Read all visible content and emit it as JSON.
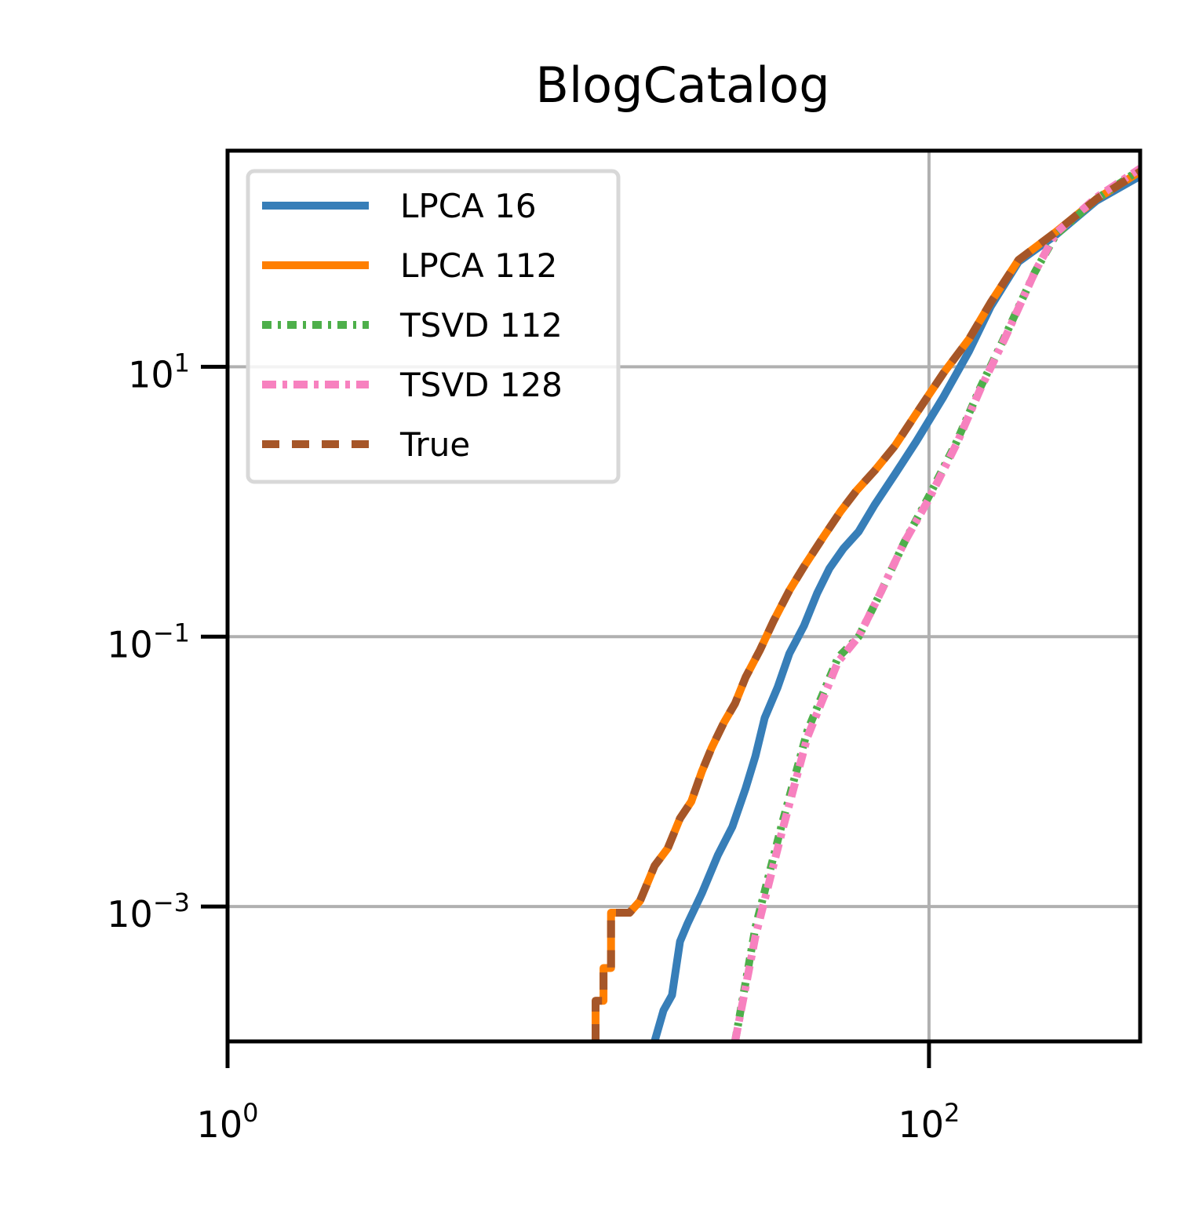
{
  "chart_data": {
    "type": "line",
    "title": "BlogCatalog",
    "xlabel": "",
    "ylabel": "",
    "xscale": "log",
    "yscale": "log",
    "xlim": [
      1,
      400
    ],
    "ylim": [
      0.0001,
      400
    ],
    "grid": true,
    "legend_position": "top-left",
    "x_ticks": [
      {
        "value": 1,
        "base": "10",
        "exp": "0"
      },
      {
        "value": 100,
        "base": "10",
        "exp": "2"
      }
    ],
    "y_ticks": [
      {
        "value": 0.001,
        "base": "10",
        "exp": "−3"
      },
      {
        "value": 0.1,
        "base": "10",
        "exp": "−1"
      },
      {
        "value": 10,
        "base": "10",
        "exp": "1"
      }
    ],
    "series": [
      {
        "name": "LPCA 16",
        "color": "#377eb8",
        "dash": "solid",
        "points": [
          [
            16.5,
            0.0001
          ],
          [
            17.5,
            0.00017
          ],
          [
            18.5,
            0.00022
          ],
          [
            19.5,
            0.00055
          ],
          [
            20.5,
            0.00075
          ],
          [
            22.5,
            0.00125
          ],
          [
            25,
            0.0024
          ],
          [
            27.5,
            0.0039
          ],
          [
            30,
            0.0075
          ],
          [
            32,
            0.013
          ],
          [
            34,
            0.025
          ],
          [
            37,
            0.042
          ],
          [
            40,
            0.075
          ],
          [
            44,
            0.12
          ],
          [
            48,
            0.21
          ],
          [
            52,
            0.32
          ],
          [
            57,
            0.45
          ],
          [
            63,
            0.6
          ],
          [
            70,
            0.95
          ],
          [
            80,
            1.6
          ],
          [
            92,
            2.8
          ],
          [
            110,
            6
          ],
          [
            130,
            13
          ],
          [
            150,
            28
          ],
          [
            180,
            60
          ],
          [
            230,
            95
          ],
          [
            300,
            170
          ],
          [
            400,
            260
          ]
        ]
      },
      {
        "name": "LPCA 112",
        "color": "#ff7f00",
        "dash": "solid",
        "points": [
          [
            11.2,
            0.0001
          ],
          [
            11.2,
            0.0002
          ],
          [
            11.8,
            0.0002
          ],
          [
            11.8,
            0.00035
          ],
          [
            12.4,
            0.00035
          ],
          [
            12.4,
            0.0009
          ],
          [
            14,
            0.0009
          ],
          [
            15,
            0.0011
          ],
          [
            16.5,
            0.002
          ],
          [
            18,
            0.0027
          ],
          [
            19.5,
            0.0045
          ],
          [
            21,
            0.006
          ],
          [
            22.5,
            0.01
          ],
          [
            24,
            0.015
          ],
          [
            26,
            0.023
          ],
          [
            28,
            0.032
          ],
          [
            30,
            0.05
          ],
          [
            33,
            0.08
          ],
          [
            36,
            0.13
          ],
          [
            40,
            0.22
          ],
          [
            44,
            0.33
          ],
          [
            50,
            0.55
          ],
          [
            56,
            0.85
          ],
          [
            62,
            1.2
          ],
          [
            70,
            1.7
          ],
          [
            80,
            2.6
          ],
          [
            92,
            4.5
          ],
          [
            110,
            9
          ],
          [
            130,
            16
          ],
          [
            150,
            30
          ],
          [
            180,
            62
          ],
          [
            230,
            100
          ],
          [
            300,
            175
          ],
          [
            400,
            280
          ]
        ]
      },
      {
        "name": "TSVD 112",
        "color": "#4daf4a",
        "dash": "12 8 4 8",
        "points": [
          [
            28,
            0.0001
          ],
          [
            32,
            0.0007
          ],
          [
            38,
            0.004
          ],
          [
            45,
            0.02
          ],
          [
            55,
            0.07
          ],
          [
            63,
            0.1
          ],
          [
            72,
            0.2
          ],
          [
            85,
            0.5
          ],
          [
            100,
            1.1
          ],
          [
            120,
            2.8
          ],
          [
            140,
            7
          ],
          [
            165,
            17
          ],
          [
            200,
            50
          ],
          [
            230,
            95
          ],
          [
            300,
            175
          ],
          [
            400,
            290
          ]
        ]
      },
      {
        "name": "TSVD 128",
        "color": "#f781bf",
        "dash": "18 8 6 8",
        "points": [
          [
            28,
            0.0001
          ],
          [
            32,
            0.0006
          ],
          [
            38,
            0.0035
          ],
          [
            45,
            0.018
          ],
          [
            55,
            0.065
          ],
          [
            63,
            0.1
          ],
          [
            72,
            0.2
          ],
          [
            85,
            0.5
          ],
          [
            100,
            1.05
          ],
          [
            120,
            2.7
          ],
          [
            140,
            6.8
          ],
          [
            165,
            16.5
          ],
          [
            200,
            50
          ],
          [
            230,
            98
          ],
          [
            300,
            180
          ],
          [
            400,
            295
          ]
        ]
      },
      {
        "name": "True",
        "color": "#a65628",
        "dash": "22 16",
        "points": [
          [
            11.2,
            0.0001
          ],
          [
            11.2,
            0.0002
          ],
          [
            11.8,
            0.0002
          ],
          [
            11.8,
            0.00035
          ],
          [
            12.4,
            0.00035
          ],
          [
            12.4,
            0.0009
          ],
          [
            14,
            0.0009
          ],
          [
            15,
            0.0011
          ],
          [
            16.5,
            0.002
          ],
          [
            18,
            0.0027
          ],
          [
            19.5,
            0.0045
          ],
          [
            21,
            0.006
          ],
          [
            22.5,
            0.01
          ],
          [
            24,
            0.015
          ],
          [
            26,
            0.023
          ],
          [
            28,
            0.032
          ],
          [
            30,
            0.05
          ],
          [
            33,
            0.08
          ],
          [
            36,
            0.13
          ],
          [
            40,
            0.22
          ],
          [
            44,
            0.33
          ],
          [
            50,
            0.55
          ],
          [
            56,
            0.85
          ],
          [
            62,
            1.2
          ],
          [
            70,
            1.7
          ],
          [
            80,
            2.6
          ],
          [
            92,
            4.5
          ],
          [
            110,
            9
          ],
          [
            130,
            16
          ],
          [
            150,
            30
          ],
          [
            180,
            62
          ],
          [
            230,
            100
          ],
          [
            300,
            175
          ],
          [
            400,
            280
          ]
        ]
      }
    ]
  }
}
